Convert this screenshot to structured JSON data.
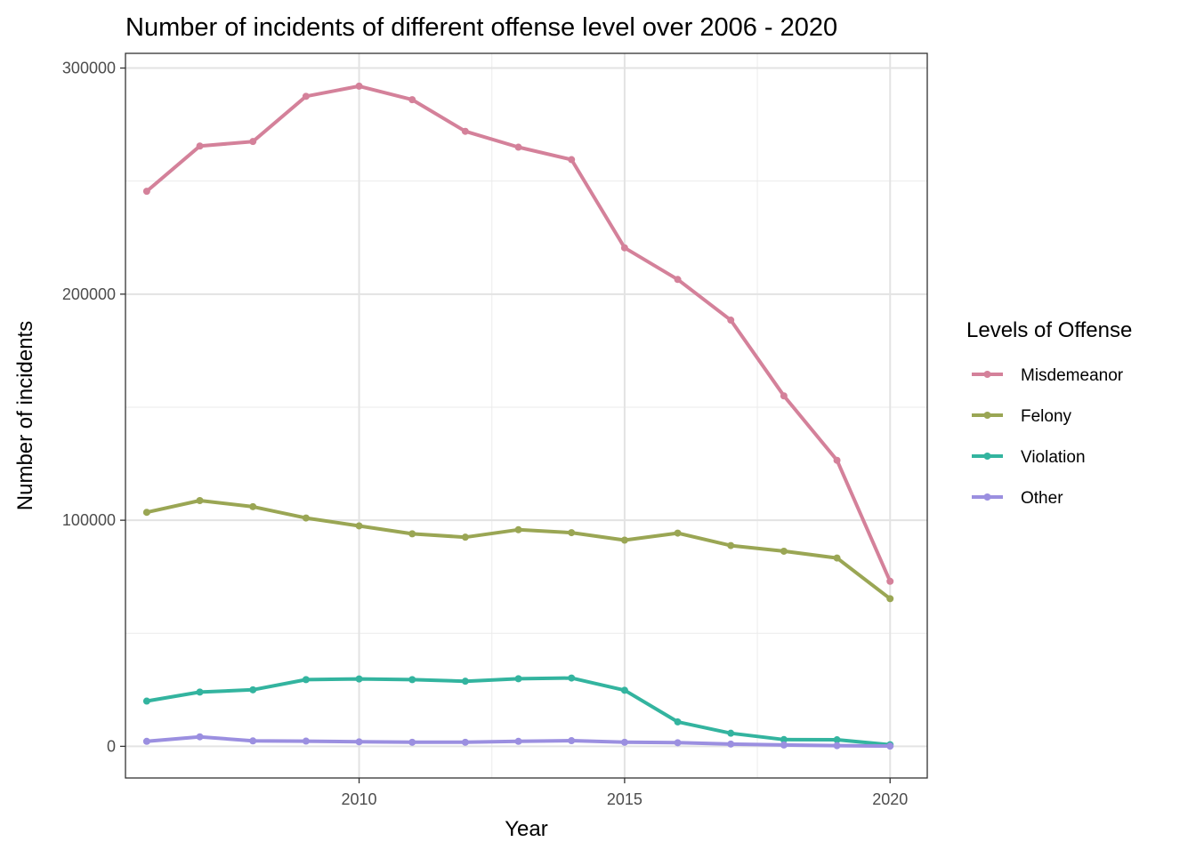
{
  "chart_data": {
    "type": "line",
    "title": "Number of incidents of different offense level over 2006 - 2020",
    "xlabel": "Year",
    "ylabel": "Number of incidents",
    "x": [
      2006,
      2007,
      2008,
      2009,
      2010,
      2011,
      2012,
      2013,
      2014,
      2015,
      2016,
      2017,
      2018,
      2019,
      2020
    ],
    "xlim": [
      2005.6,
      2020.7
    ],
    "ylim": [
      -14000,
      306500
    ],
    "x_ticks": [
      2010,
      2015,
      2020
    ],
    "y_ticks": [
      0,
      100000,
      200000,
      300000
    ],
    "x_tick_labels": [
      "2010",
      "2015",
      "2020"
    ],
    "y_tick_labels": [
      "0",
      "100000",
      "200000",
      "300000"
    ],
    "grid": true,
    "legend": {
      "title": "Levels of Offense",
      "position": "right"
    },
    "series": [
      {
        "name": "Misdemeanor",
        "color": "#D4819A",
        "values": [
          245500,
          265500,
          267500,
          287500,
          292000,
          286000,
          272000,
          265000,
          259500,
          220500,
          206500,
          188500,
          155000,
          126500,
          73000
        ]
      },
      {
        "name": "Felony",
        "color": "#9AA654",
        "values": [
          103500,
          108700,
          106000,
          101000,
          97500,
          94000,
          92500,
          95800,
          94500,
          91200,
          94300,
          88800,
          86300,
          83300,
          65300
        ]
      },
      {
        "name": "Violation",
        "color": "#33B49F",
        "values": [
          20000,
          24000,
          25000,
          29500,
          29800,
          29500,
          28800,
          29900,
          30200,
          24800,
          10800,
          5800,
          3000,
          2900,
          700
        ]
      },
      {
        "name": "Other",
        "color": "#9B8FE0",
        "values": [
          2200,
          4200,
          2400,
          2300,
          2000,
          1800,
          1800,
          2200,
          2500,
          1800,
          1600,
          1000,
          600,
          300,
          100
        ]
      }
    ]
  }
}
